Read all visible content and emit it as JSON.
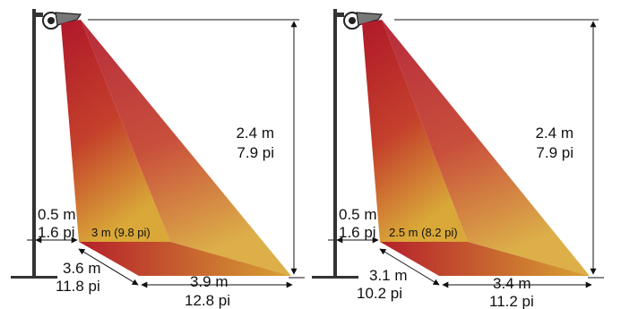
{
  "colors": {
    "cone_top": "#b0182a",
    "cone_mid": "#c4402b",
    "cone_bottom": "#d9a838",
    "pole": "#333333",
    "line": "#111111"
  },
  "diagrams": [
    {
      "height_m": "2.4 m",
      "height_ft": "7.9 pi",
      "offset_m": "0.5 m",
      "offset_ft": "1.6 pi",
      "inner_width": "3 m (9.8 pi)",
      "depth_m": "3.6 m",
      "depth_ft": "11.8 pi",
      "width_m": "3.9 m",
      "width_ft": "12.8 pi"
    },
    {
      "height_m": "2.4 m",
      "height_ft": "7.9 pi",
      "offset_m": "0.5 m",
      "offset_ft": "1.6 pi",
      "inner_width": "2.5 m (8.2 pi)",
      "depth_m": "3.1 m",
      "depth_ft": "10.2 pi",
      "width_m": "3.4 m",
      "width_ft": "11.2 pi"
    }
  ]
}
